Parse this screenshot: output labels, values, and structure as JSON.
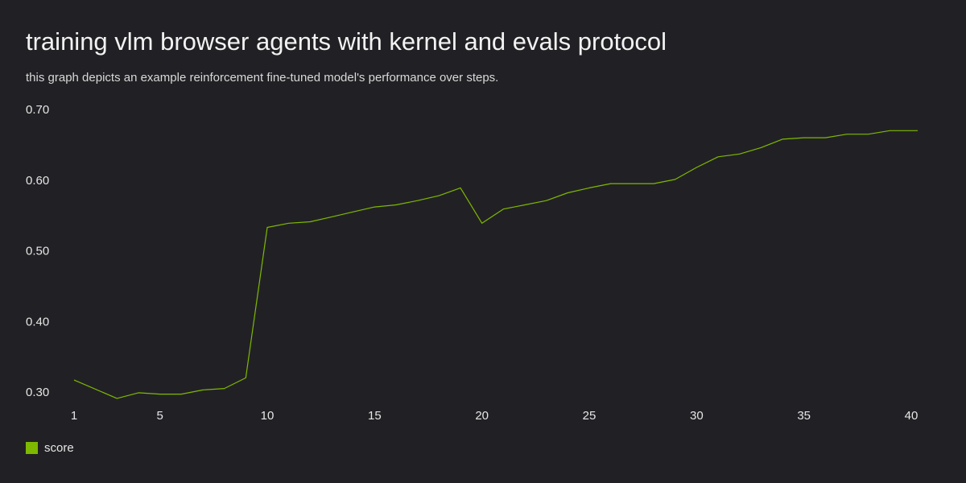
{
  "header": {
    "title": "training vlm browser agents with kernel and evals protocol",
    "subtitle": "this graph depicts an example reinforcement fine-tuned model's performance over steps."
  },
  "legend": {
    "label": "score",
    "color": "#7fb800"
  },
  "chart_data": {
    "type": "line",
    "title": "training vlm browser agents with kernel and evals protocol",
    "subtitle": "this graph depicts an example reinforcement fine-tuned model's performance over steps.",
    "xlabel": "",
    "ylabel": "",
    "xlim": [
      1,
      40.3
    ],
    "ylim": [
      0.3,
      0.7
    ],
    "x_ticks": [
      1,
      5,
      10,
      15,
      20,
      25,
      30,
      35,
      40
    ],
    "y_ticks": [
      0.3,
      0.4,
      0.5,
      0.6,
      0.7
    ],
    "y_tick_labels": [
      "0.30",
      "0.40",
      "0.50",
      "0.60",
      "0.70"
    ],
    "grid": false,
    "legend_position": "bottom-left",
    "series": [
      {
        "name": "score",
        "color": "#7fb800",
        "x": [
          1,
          3,
          4,
          5,
          6,
          7,
          8,
          9,
          10,
          11,
          12,
          13,
          14,
          15,
          16,
          17,
          18,
          19,
          20,
          21,
          22,
          23,
          24,
          25,
          26,
          27,
          28,
          29,
          30,
          31,
          32,
          33,
          34,
          35,
          36,
          37,
          38,
          39,
          40.3
        ],
        "values": [
          0.317,
          0.291,
          0.299,
          0.297,
          0.297,
          0.303,
          0.305,
          0.32,
          0.533,
          0.539,
          0.541,
          0.548,
          0.555,
          0.562,
          0.565,
          0.571,
          0.578,
          0.589,
          0.539,
          0.559,
          0.565,
          0.571,
          0.582,
          0.589,
          0.595,
          0.595,
          0.595,
          0.601,
          0.618,
          0.633,
          0.637,
          0.646,
          0.658,
          0.66,
          0.66,
          0.665,
          0.665,
          0.67,
          0.67
        ]
      }
    ]
  }
}
